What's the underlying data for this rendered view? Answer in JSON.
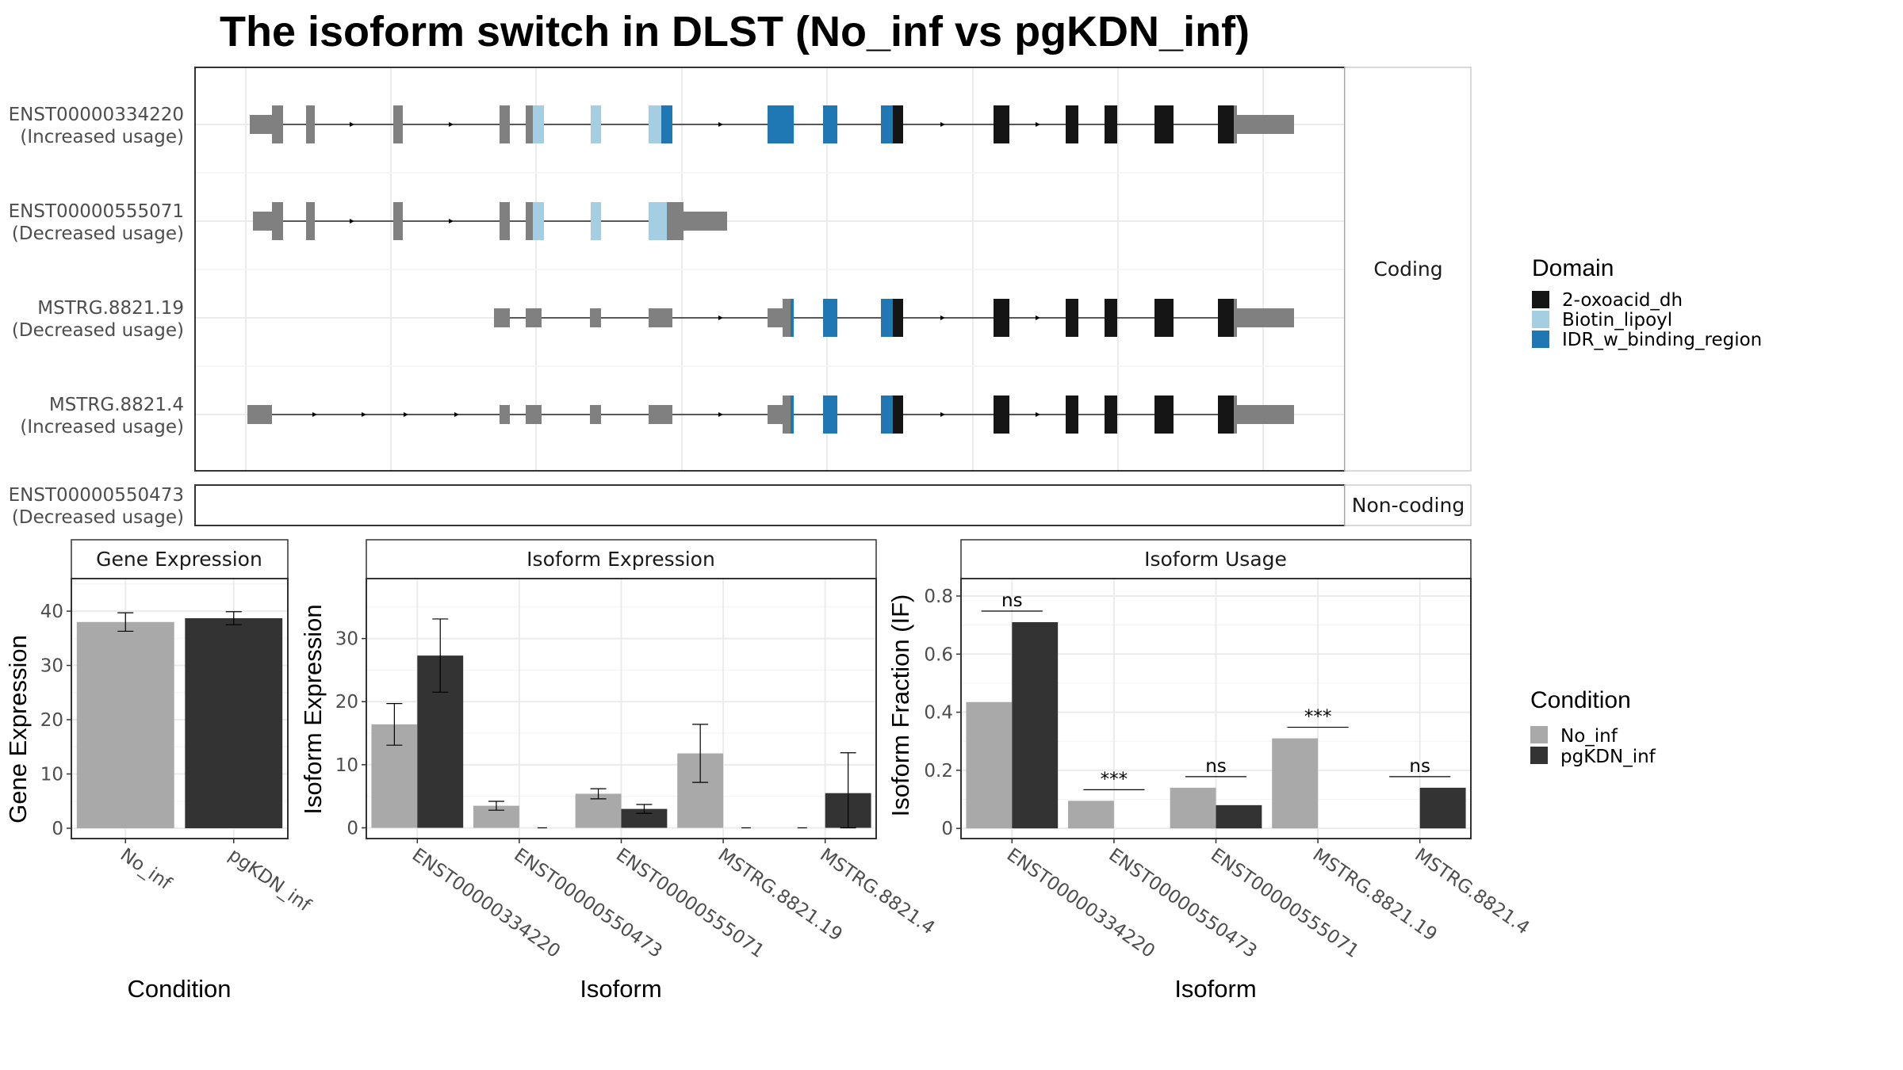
{
  "title": "The isoform switch in DLST (No_inf vs pgKDN_inf)",
  "colors": {
    "domain": {
      "2-oxoacid_dh": "#151515",
      "Biotin_lipoyl": "#a6cee3",
      "IDR_w_binding_region": "#1f78b4"
    },
    "condition": {
      "No_inf": "#a9a9a9",
      "pgKDN_inf": "#333333"
    },
    "exon": "#808080"
  },
  "structure": {
    "coding_label": "Coding",
    "noncoding_label": "Non-coding",
    "transcripts": [
      {
        "id": "ENST00000334220",
        "usage": "(Increased usage)",
        "group": "coding"
      },
      {
        "id": "ENST00000555071",
        "usage": "(Decreased usage)",
        "group": "coding"
      },
      {
        "id": "MSTRG.8821.19",
        "usage": "(Decreased usage)",
        "group": "coding"
      },
      {
        "id": "MSTRG.8821.4",
        "usage": "(Increased usage)",
        "group": "coding"
      },
      {
        "id": "ENST00000550473",
        "usage": "(Decreased usage)",
        "group": "noncoding"
      }
    ]
  },
  "legends": {
    "domain": {
      "title": "Domain",
      "items": [
        "2-oxoacid_dh",
        "Biotin_lipoyl",
        "IDR_w_binding_region"
      ]
    },
    "condition": {
      "title": "Condition",
      "items": [
        "No_inf",
        "pgKDN_inf"
      ]
    }
  },
  "chart_data": [
    {
      "type": "bar",
      "title": "Gene Expression",
      "xlabel": "Condition",
      "ylabel": "Gene Expression",
      "categories": [
        "No_inf",
        "pgKDN_inf"
      ],
      "values": [
        38.0,
        38.7
      ],
      "error_low": [
        36.3,
        37.5
      ],
      "error_high": [
        39.7,
        39.9
      ],
      "yticks": [
        0,
        10,
        20,
        30,
        40
      ],
      "ylim": [
        -1.9,
        46
      ]
    },
    {
      "type": "bar",
      "title": "Isoform Expression",
      "xlabel": "Isoform",
      "ylabel": "Isoform Expression",
      "categories": [
        "ENST00000334220",
        "ENST00000550473",
        "ENST00000555071",
        "MSTRG.8821.19",
        "MSTRG.8821.4"
      ],
      "series": [
        {
          "name": "No_inf",
          "values": [
            16.4,
            3.5,
            5.4,
            11.8,
            0.0
          ],
          "error_low": [
            13.1,
            2.8,
            4.6,
            7.2,
            0.0
          ],
          "error_high": [
            19.7,
            4.2,
            6.2,
            16.4,
            0.0
          ]
        },
        {
          "name": "pgKDN_inf",
          "values": [
            27.3,
            0.0,
            3.0,
            0.0,
            5.5
          ],
          "error_low": [
            21.5,
            0.0,
            2.3,
            0.0,
            0.0
          ],
          "error_high": [
            33.1,
            0.0,
            3.7,
            0.0,
            11.9
          ]
        }
      ],
      "yticks": [
        0,
        10,
        20,
        30
      ],
      "ylim": [
        -1.7,
        39.5
      ]
    },
    {
      "type": "bar",
      "title": "Isoform Usage",
      "xlabel": "Isoform",
      "ylabel": "Isoform Fraction (IF)",
      "categories": [
        "ENST00000334220",
        "ENST00000550473",
        "ENST00000555071",
        "MSTRG.8821.19",
        "MSTRG.8821.4"
      ],
      "series": [
        {
          "name": "No_inf",
          "values": [
            0.435,
            0.095,
            0.14,
            0.31,
            0.0
          ]
        },
        {
          "name": "pgKDN_inf",
          "values": [
            0.71,
            0.0,
            0.08,
            0.0,
            0.14
          ]
        }
      ],
      "significance": [
        "ns",
        "***",
        "ns",
        "***",
        "ns"
      ],
      "yticks": [
        0.0,
        0.2,
        0.4,
        0.6,
        0.8
      ],
      "ylim": [
        -0.035,
        0.86
      ]
    }
  ]
}
